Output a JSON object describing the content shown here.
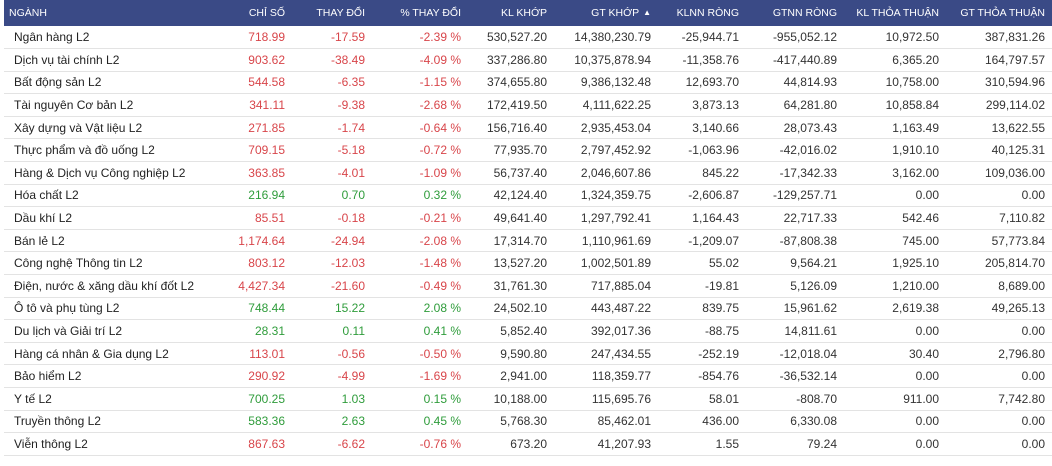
{
  "colors": {
    "header_bg": "#3a4a86",
    "down": "#d8454a",
    "up": "#2f9c3b"
  },
  "headers": {
    "name": "NGÀNH",
    "index": "CHỈ SỐ",
    "change": "THAY ĐỔI",
    "pct_change": "% THAY ĐỔI",
    "kl_khop": "KL KHỚP",
    "gt_khop": "GT KHỚP",
    "klnn_rong": "KLNN RÒNG",
    "gtnn_rong": "GTNN RÒNG",
    "kl_thoa_thuan": "KL THỎA THUẬN",
    "gt_thoa_thuan": "GT THỎA THUẬN"
  },
  "sort_icon": "sort-icon",
  "rows": [
    {
      "name": "Ngân hàng L2",
      "index": "718.99",
      "change": "-17.59",
      "pct": "-2.39 %",
      "kl": "530,527.20",
      "gt": "14,380,230.79",
      "klnn": "-25,944.71",
      "gtnn": "-955,052.12",
      "kltt": "10,972.50",
      "gttt": "387,831.26",
      "dir": "down"
    },
    {
      "name": "Dịch vụ tài chính L2",
      "index": "903.62",
      "change": "-38.49",
      "pct": "-4.09 %",
      "kl": "337,286.80",
      "gt": "10,375,878.94",
      "klnn": "-11,358.76",
      "gtnn": "-417,440.89",
      "kltt": "6,365.20",
      "gttt": "164,797.57",
      "dir": "down"
    },
    {
      "name": "Bất động sản L2",
      "index": "544.58",
      "change": "-6.35",
      "pct": "-1.15 %",
      "kl": "374,655.80",
      "gt": "9,386,132.48",
      "klnn": "12,693.70",
      "gtnn": "44,814.93",
      "kltt": "10,758.00",
      "gttt": "310,594.96",
      "dir": "down"
    },
    {
      "name": "Tài nguyên Cơ bản L2",
      "index": "341.11",
      "change": "-9.38",
      "pct": "-2.68 %",
      "kl": "172,419.50",
      "gt": "4,111,622.25",
      "klnn": "3,873.13",
      "gtnn": "64,281.80",
      "kltt": "10,858.84",
      "gttt": "299,114.02",
      "dir": "down"
    },
    {
      "name": "Xây dựng và Vật liệu L2",
      "index": "271.85",
      "change": "-1.74",
      "pct": "-0.64 %",
      "kl": "156,716.40",
      "gt": "2,935,453.04",
      "klnn": "3,140.66",
      "gtnn": "28,073.43",
      "kltt": "1,163.49",
      "gttt": "13,622.55",
      "dir": "down"
    },
    {
      "name": "Thực phẩm và đồ uống L2",
      "index": "709.15",
      "change": "-5.18",
      "pct": "-0.72 %",
      "kl": "77,935.70",
      "gt": "2,797,452.92",
      "klnn": "-1,063.96",
      "gtnn": "-42,016.02",
      "kltt": "1,910.10",
      "gttt": "40,125.31",
      "dir": "down"
    },
    {
      "name": "Hàng & Dịch vụ Công nghiệp L2",
      "index": "363.85",
      "change": "-4.01",
      "pct": "-1.09 %",
      "kl": "56,737.40",
      "gt": "2,046,607.86",
      "klnn": "845.22",
      "gtnn": "-17,342.33",
      "kltt": "3,162.00",
      "gttt": "109,036.00",
      "dir": "down"
    },
    {
      "name": "Hóa chất L2",
      "index": "216.94",
      "change": "0.70",
      "pct": "0.32 %",
      "kl": "42,124.40",
      "gt": "1,324,359.75",
      "klnn": "-2,606.87",
      "gtnn": "-129,257.71",
      "kltt": "0.00",
      "gttt": "0.00",
      "dir": "up"
    },
    {
      "name": "Dầu khí L2",
      "index": "85.51",
      "change": "-0.18",
      "pct": "-0.21 %",
      "kl": "49,641.40",
      "gt": "1,297,792.41",
      "klnn": "1,164.43",
      "gtnn": "22,717.33",
      "kltt": "542.46",
      "gttt": "7,110.82",
      "dir": "down"
    },
    {
      "name": "Bán lẻ L2",
      "index": "1,174.64",
      "change": "-24.94",
      "pct": "-2.08 %",
      "kl": "17,314.70",
      "gt": "1,110,961.69",
      "klnn": "-1,209.07",
      "gtnn": "-87,808.38",
      "kltt": "745.00",
      "gttt": "57,773.84",
      "dir": "down"
    },
    {
      "name": "Công nghệ Thông tin L2",
      "index": "803.12",
      "change": "-12.03",
      "pct": "-1.48 %",
      "kl": "13,527.20",
      "gt": "1,002,501.89",
      "klnn": "55.02",
      "gtnn": "9,564.21",
      "kltt": "1,925.10",
      "gttt": "205,814.70",
      "dir": "down"
    },
    {
      "name": "Điện, nước & xăng dầu khí đốt L2",
      "index": "4,427.34",
      "change": "-21.60",
      "pct": "-0.49 %",
      "kl": "31,761.30",
      "gt": "717,885.04",
      "klnn": "-19.81",
      "gtnn": "5,126.09",
      "kltt": "1,210.00",
      "gttt": "8,689.00",
      "dir": "down"
    },
    {
      "name": "Ô tô và phụ tùng L2",
      "index": "748.44",
      "change": "15.22",
      "pct": "2.08 %",
      "kl": "24,502.10",
      "gt": "443,487.22",
      "klnn": "839.75",
      "gtnn": "15,961.62",
      "kltt": "2,619.38",
      "gttt": "49,265.13",
      "dir": "up"
    },
    {
      "name": "Du lịch và Giải trí L2",
      "index": "28.31",
      "change": "0.11",
      "pct": "0.41 %",
      "kl": "5,852.40",
      "gt": "392,017.36",
      "klnn": "-88.75",
      "gtnn": "14,811.61",
      "kltt": "0.00",
      "gttt": "0.00",
      "dir": "up"
    },
    {
      "name": "Hàng cá nhân & Gia dụng L2",
      "index": "113.01",
      "change": "-0.56",
      "pct": "-0.50 %",
      "kl": "9,590.80",
      "gt": "247,434.55",
      "klnn": "-252.19",
      "gtnn": "-12,018.04",
      "kltt": "30.40",
      "gttt": "2,796.80",
      "dir": "down"
    },
    {
      "name": "Bảo hiểm L2",
      "index": "290.92",
      "change": "-4.99",
      "pct": "-1.69 %",
      "kl": "2,941.00",
      "gt": "118,359.77",
      "klnn": "-854.76",
      "gtnn": "-36,532.14",
      "kltt": "0.00",
      "gttt": "0.00",
      "dir": "down"
    },
    {
      "name": "Y tế L2",
      "index": "700.25",
      "change": "1.03",
      "pct": "0.15 %",
      "kl": "10,188.00",
      "gt": "115,695.76",
      "klnn": "58.01",
      "gtnn": "-808.70",
      "kltt": "911.00",
      "gttt": "7,742.80",
      "dir": "up"
    },
    {
      "name": "Truyền thông L2",
      "index": "583.36",
      "change": "2.63",
      "pct": "0.45 %",
      "kl": "5,768.30",
      "gt": "85,462.01",
      "klnn": "436.00",
      "gtnn": "6,330.08",
      "kltt": "0.00",
      "gttt": "0.00",
      "dir": "up"
    },
    {
      "name": "Viễn thông L2",
      "index": "867.63",
      "change": "-6.62",
      "pct": "-0.76 %",
      "kl": "673.20",
      "gt": "41,207.93",
      "klnn": "1.55",
      "gtnn": "79.24",
      "kltt": "0.00",
      "gttt": "0.00",
      "dir": "down"
    }
  ]
}
